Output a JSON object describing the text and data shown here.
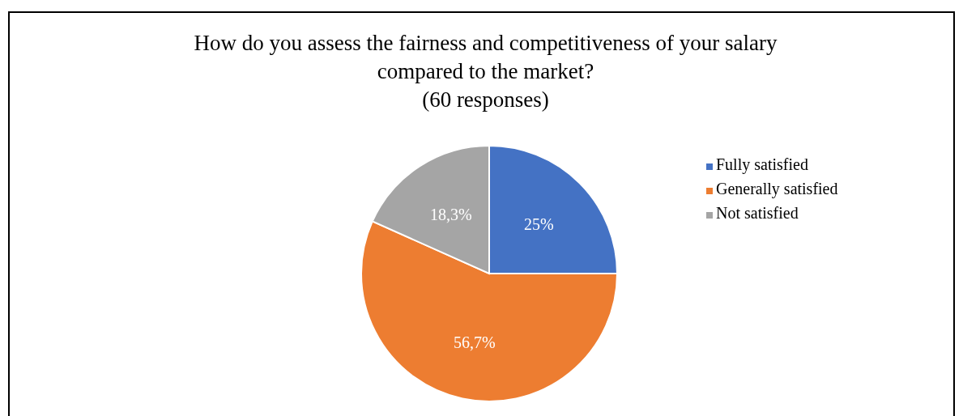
{
  "chart_data": {
    "type": "pie",
    "title": "How do you assess the fairness and competitiveness of your salary\ncompared to the market?\n(60 responses)",
    "categories": [
      "Fully satisfied",
      "Generally satisfied",
      "Not satisfied"
    ],
    "values": [
      25,
      56.7,
      18.3
    ],
    "value_labels": [
      "25%",
      "56,7%",
      "18,3%"
    ],
    "colors": [
      "#4472c4",
      "#ed7d31",
      "#a5a5a5"
    ],
    "legend": "right"
  }
}
